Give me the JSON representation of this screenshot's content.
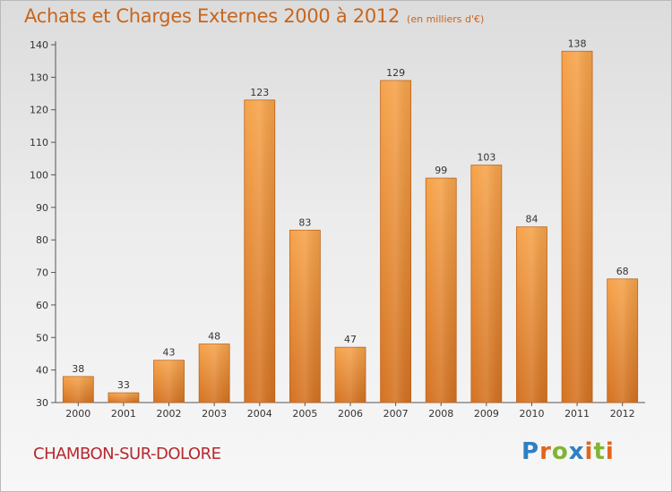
{
  "header": {
    "title": "Achats et Charges Externes 2000 à 2012",
    "subtitle": "(en milliers d'€)"
  },
  "footer": {
    "commune": "CHAMBON-SUR-DOLORE",
    "logo": "Proxiti",
    "logo_colors": [
      "#2e7fc2",
      "#e2651b",
      "#7fb533",
      "#2e7fc2",
      "#e2651b",
      "#7fb533",
      "#e2651b"
    ]
  },
  "colors": {
    "bar_light": "#f6a34a",
    "bar_dark": "#d47221",
    "title": "#c8651b",
    "commune": "#b5282f"
  },
  "chart_data": {
    "type": "bar",
    "categories": [
      "2000",
      "2001",
      "2002",
      "2003",
      "2004",
      "2005",
      "2006",
      "2007",
      "2008",
      "2009",
      "2010",
      "2011",
      "2012"
    ],
    "values": [
      38,
      33,
      43,
      48,
      123,
      83,
      47,
      129,
      99,
      103,
      84,
      138,
      68
    ],
    "ylim": [
      30,
      140
    ],
    "yticks": [
      30,
      40,
      50,
      60,
      70,
      80,
      90,
      100,
      110,
      120,
      130,
      140
    ],
    "grid": false,
    "legend": "none",
    "data_labels": true
  }
}
